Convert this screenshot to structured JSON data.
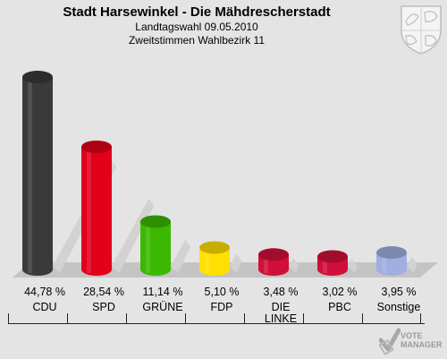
{
  "header": {
    "title": "Stadt Harsewinkel - Die Mähdrescherstadt",
    "subtitle1": "Landtagswahl 09.05.2010",
    "subtitle2": "Zweitstimmen Wahlbezirk 11"
  },
  "chart_data": {
    "type": "bar",
    "title": "Stadt Harsewinkel - Die Mähdrescherstadt",
    "categories": [
      "CDU",
      "SPD",
      "GRÜNE",
      "FDP",
      "DIE LINKE",
      "PBC",
      "Sonstige"
    ],
    "values": [
      44.78,
      28.54,
      11.14,
      5.1,
      3.48,
      3.02,
      3.95
    ],
    "value_labels": [
      "44,78 %",
      "28,54 %",
      "11,14 %",
      "5,10 %",
      "3,48 %",
      "3,02 %",
      "3,95 %"
    ],
    "colors": [
      "#3a3a3a",
      "#e2001a",
      "#3bb800",
      "#ffe000",
      "#d0103a",
      "#d0103a",
      "#a0aee0"
    ],
    "ylim": [
      0,
      50
    ],
    "grid": false,
    "legend": "none"
  },
  "labels": [
    {
      "pct": "44,78 %",
      "name": "CDU"
    },
    {
      "pct": "28,54 %",
      "name": "SPD"
    },
    {
      "pct": "11,14 %",
      "name": "GRÜNE"
    },
    {
      "pct": "5,10 %",
      "name": "FDP"
    },
    {
      "pct": "3,48 %",
      "name": "DIE LINKE"
    },
    {
      "pct": "3,02 %",
      "name": "PBC"
    },
    {
      "pct": "3,95 %",
      "name": "Sonstige"
    }
  ],
  "watermark": {
    "line1": "VOTE",
    "line2": "MANAGER",
    "icon": "checkmark-icon"
  },
  "emblem": {
    "icon": "coat-of-arms-icon"
  }
}
